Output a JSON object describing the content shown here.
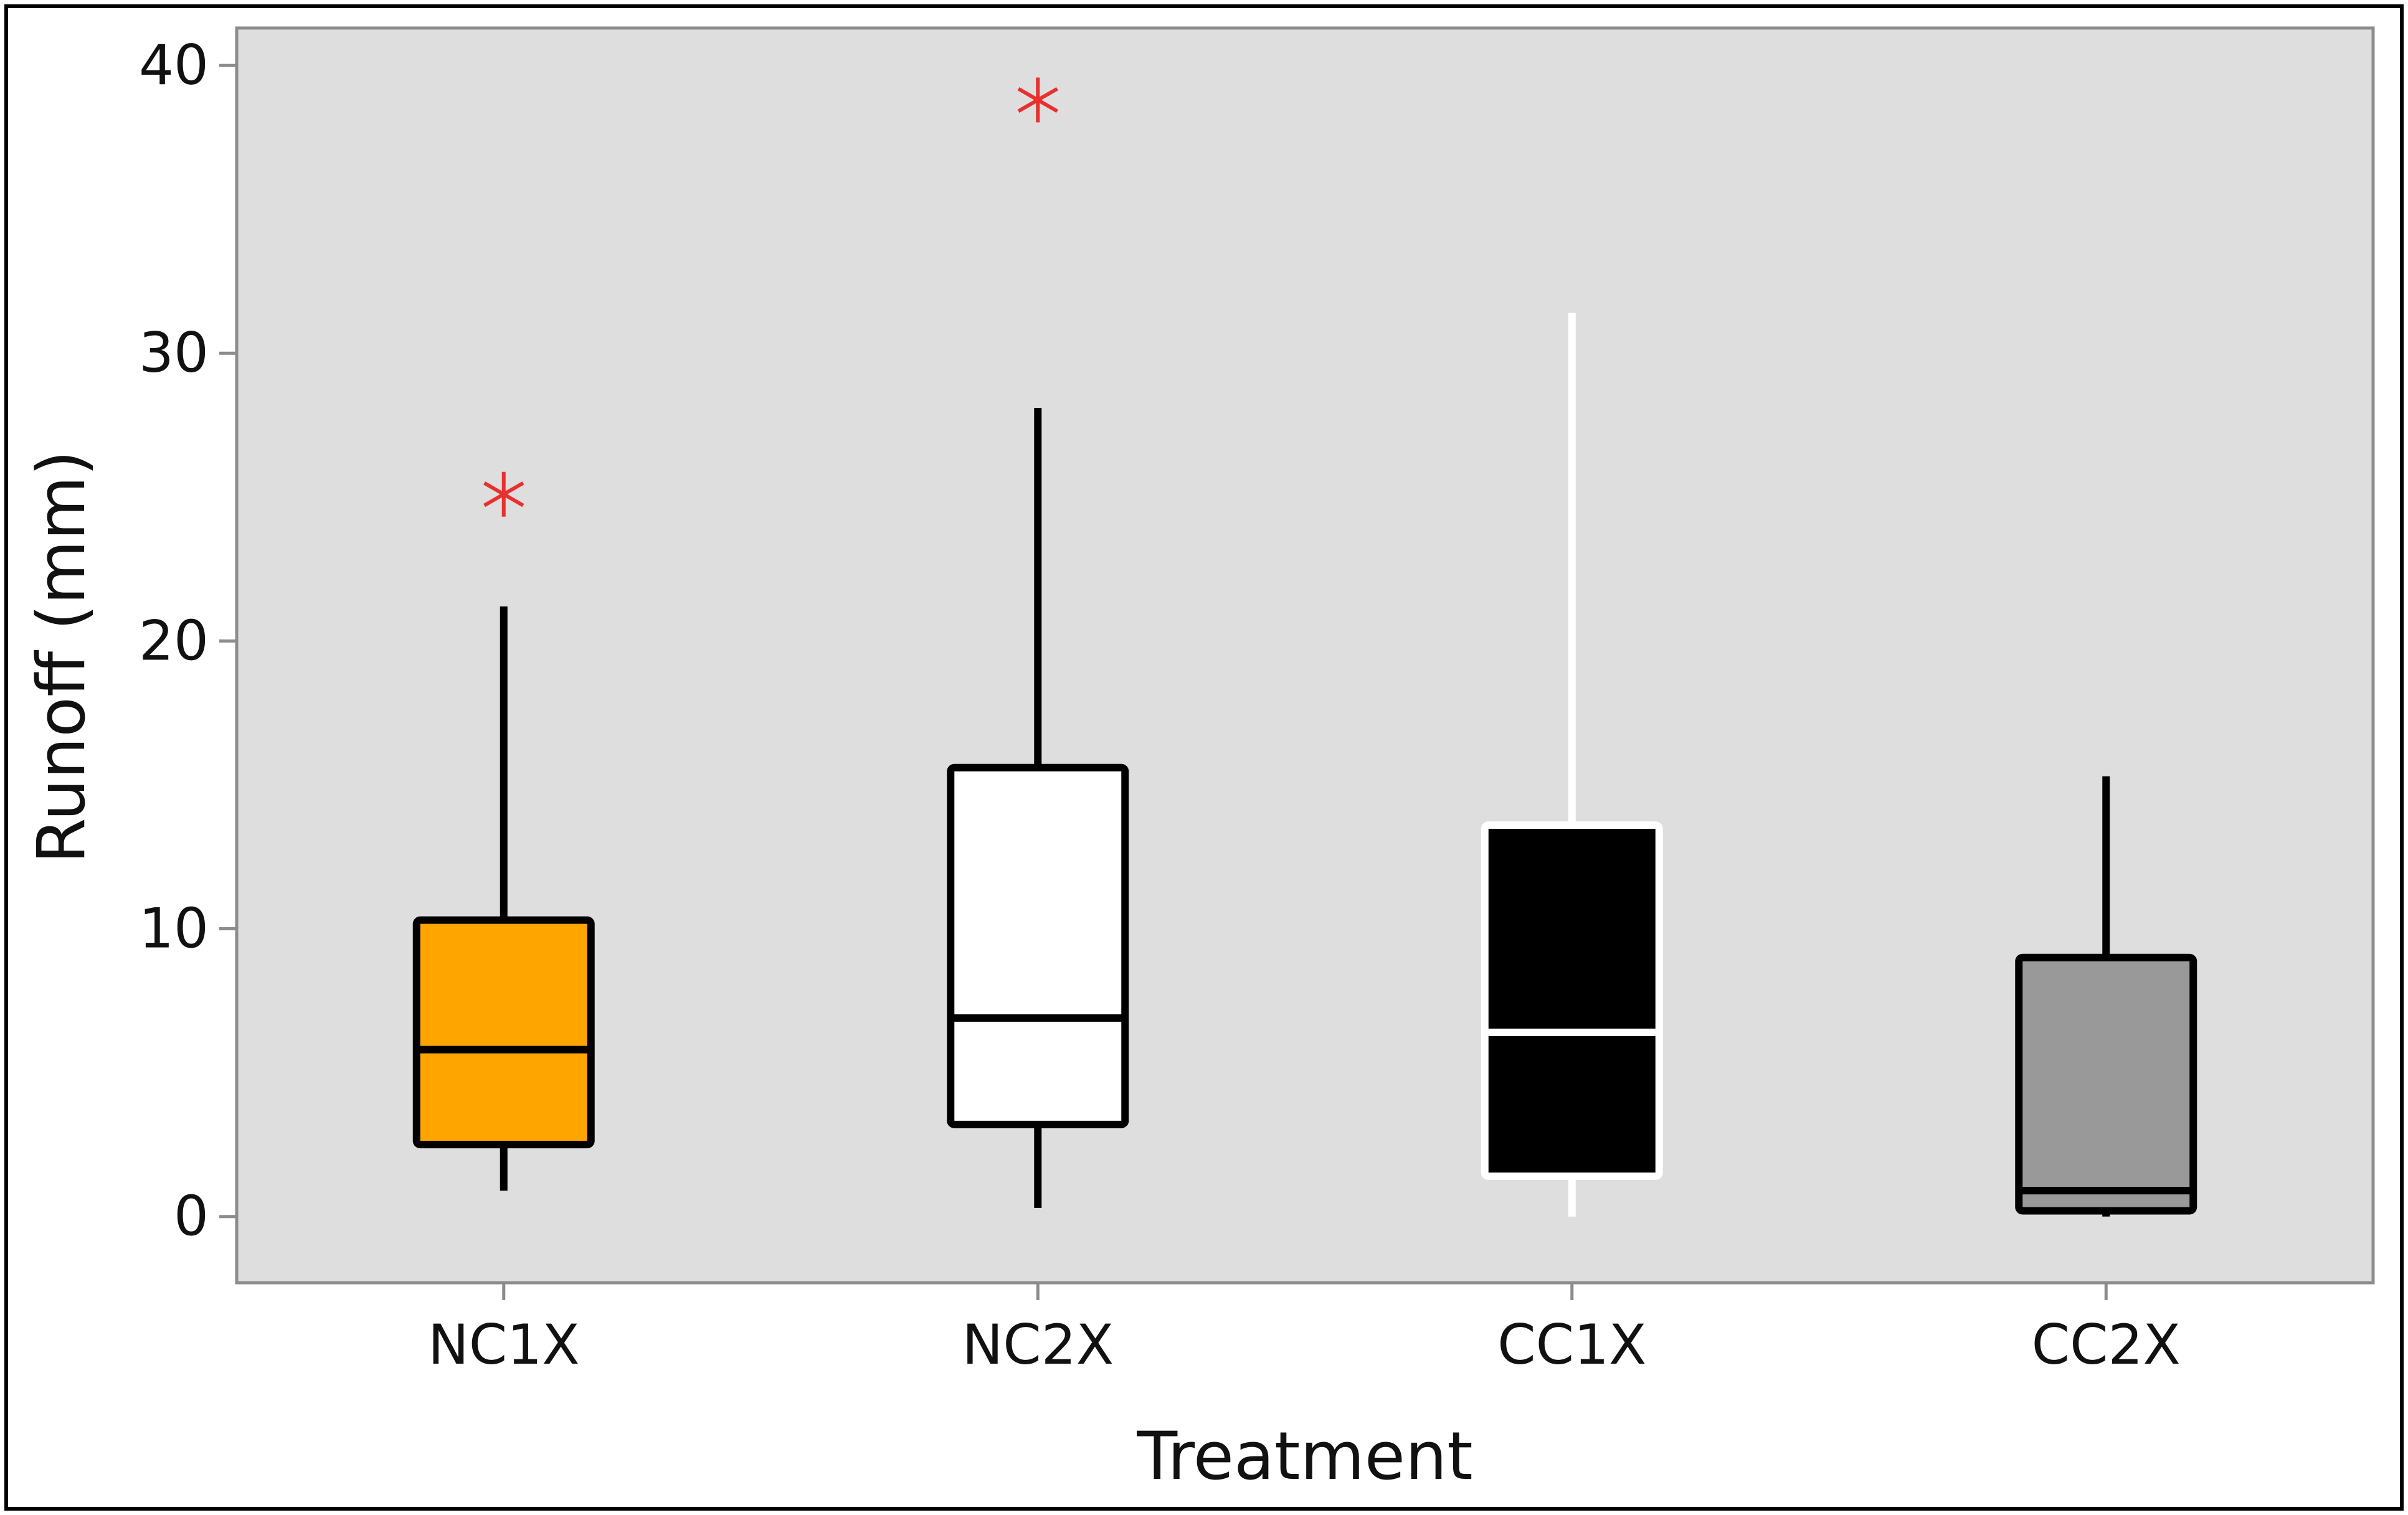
{
  "chart_data": {
    "type": "boxplot",
    "title": "",
    "xlabel": "Treatment",
    "ylabel": "Runoff (mm)",
    "ylim": [
      -2.3,
      41.3
    ],
    "yticks": [
      0,
      10,
      20,
      30,
      40
    ],
    "grid": false,
    "legend": "none",
    "categories": [
      "NC1X",
      "NC2X",
      "CC1X",
      "CC2X"
    ],
    "series": [
      {
        "name": "NC1X",
        "whisker_low": 0.9,
        "q1": 2.5,
        "median": 5.8,
        "q3": 10.3,
        "whisker_high": 21.2,
        "outliers": [
          25.1
        ],
        "fill": "#FFA500",
        "line": "#000000"
      },
      {
        "name": "NC2X",
        "whisker_low": 0.3,
        "q1": 3.2,
        "median": 6.9,
        "q3": 15.6,
        "whisker_high": 28.1,
        "outliers": [
          38.8
        ],
        "fill": "#FFFFFF",
        "line": "#000000"
      },
      {
        "name": "CC1X",
        "whisker_low": 0.0,
        "q1": 1.4,
        "median": 6.4,
        "q3": 13.6,
        "whisker_high": 31.4,
        "outliers": [],
        "fill": "#000000",
        "line": "#FFFFFF"
      },
      {
        "name": "CC2X",
        "whisker_low": 0.0,
        "q1": 0.2,
        "median": 0.9,
        "q3": 9.0,
        "whisker_high": 15.3,
        "outliers": [],
        "fill": "#999999",
        "line": "#000000"
      }
    ],
    "colors": {
      "plot_background": "#DEDEDE",
      "outlier_marker": "#E8302E",
      "frame": "#8C8C8C"
    }
  }
}
